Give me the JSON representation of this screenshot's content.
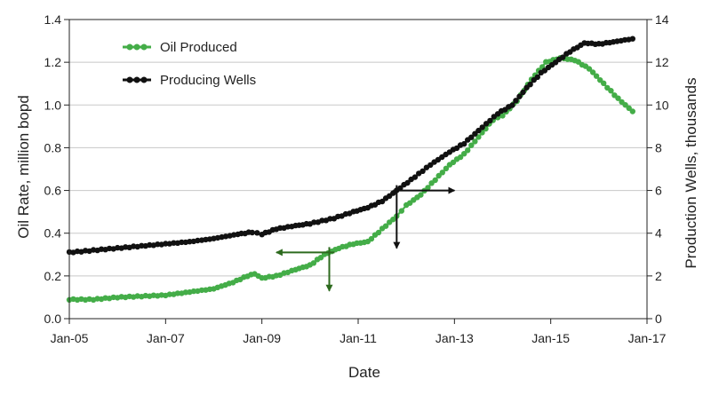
{
  "chart_data": {
    "type": "line",
    "title": "",
    "xlabel": "Date",
    "ylabel_left": "Oil Rate, million bopd",
    "ylabel_right": "Production Wells, thousands",
    "x_range": [
      2005,
      2017
    ],
    "x_ticks": [
      {
        "value": 2005,
        "label": "Jan-05"
      },
      {
        "value": 2007,
        "label": "Jan-07"
      },
      {
        "value": 2009,
        "label": "Jan-09"
      },
      {
        "value": 2011,
        "label": "Jan-11"
      },
      {
        "value": 2013,
        "label": "Jan-13"
      },
      {
        "value": 2015,
        "label": "Jan-15"
      },
      {
        "value": 2017,
        "label": "Jan-17"
      }
    ],
    "ylim_left": [
      0,
      1.4
    ],
    "y_ticks_left": [
      {
        "value": 0.0,
        "label": "0.0"
      },
      {
        "value": 0.2,
        "label": "0.2"
      },
      {
        "value": 0.4,
        "label": "0.4"
      },
      {
        "value": 0.6,
        "label": "0.6"
      },
      {
        "value": 0.8,
        "label": "0.8"
      },
      {
        "value": 1.0,
        "label": "1.0"
      },
      {
        "value": 1.2,
        "label": "1.2"
      },
      {
        "value": 1.4,
        "label": "1.4"
      }
    ],
    "ylim_right": [
      0,
      14
    ],
    "y_ticks_right": [
      {
        "value": 0,
        "label": "0"
      },
      {
        "value": 2,
        "label": "2"
      },
      {
        "value": 4,
        "label": "4"
      },
      {
        "value": 6,
        "label": "6"
      },
      {
        "value": 8,
        "label": "8"
      },
      {
        "value": 10,
        "label": "10"
      },
      {
        "value": 12,
        "label": "12"
      },
      {
        "value": 14,
        "label": "14"
      }
    ],
    "grid": "horizontal",
    "legend_position": "top-left",
    "series": [
      {
        "name": "Oil Produced",
        "axis": "left",
        "color": "#44ad48",
        "points": [
          [
            2005.0,
            0.09
          ],
          [
            2005.5,
            0.09
          ],
          [
            2006.0,
            0.1
          ],
          [
            2006.5,
            0.105
          ],
          [
            2007.0,
            0.11
          ],
          [
            2007.5,
            0.125
          ],
          [
            2008.0,
            0.14
          ],
          [
            2008.4,
            0.17
          ],
          [
            2008.7,
            0.2
          ],
          [
            2008.85,
            0.21
          ],
          [
            2009.0,
            0.19
          ],
          [
            2009.3,
            0.2
          ],
          [
            2009.7,
            0.23
          ],
          [
            2010.0,
            0.25
          ],
          [
            2010.3,
            0.3
          ],
          [
            2010.6,
            0.33
          ],
          [
            2010.9,
            0.35
          ],
          [
            2011.2,
            0.36
          ],
          [
            2011.5,
            0.42
          ],
          [
            2011.8,
            0.48
          ],
          [
            2012.0,
            0.53
          ],
          [
            2012.3,
            0.58
          ],
          [
            2012.6,
            0.65
          ],
          [
            2012.9,
            0.72
          ],
          [
            2013.2,
            0.77
          ],
          [
            2013.5,
            0.85
          ],
          [
            2013.8,
            0.93
          ],
          [
            2014.0,
            0.95
          ],
          [
            2014.3,
            1.02
          ],
          [
            2014.6,
            1.12
          ],
          [
            2014.9,
            1.2
          ],
          [
            2015.2,
            1.22
          ],
          [
            2015.5,
            1.21
          ],
          [
            2015.8,
            1.17
          ],
          [
            2016.1,
            1.1
          ],
          [
            2016.4,
            1.03
          ],
          [
            2016.7,
            0.97
          ]
        ]
      },
      {
        "name": "Producing Wells",
        "axis": "right",
        "color": "#111111",
        "points": [
          [
            2005.0,
            3.1
          ],
          [
            2005.5,
            3.2
          ],
          [
            2006.0,
            3.3
          ],
          [
            2006.5,
            3.4
          ],
          [
            2007.0,
            3.5
          ],
          [
            2007.5,
            3.6
          ],
          [
            2008.0,
            3.75
          ],
          [
            2008.5,
            3.95
          ],
          [
            2008.8,
            4.05
          ],
          [
            2009.0,
            3.95
          ],
          [
            2009.3,
            4.2
          ],
          [
            2009.7,
            4.35
          ],
          [
            2010.0,
            4.45
          ],
          [
            2010.5,
            4.7
          ],
          [
            2010.9,
            5.0
          ],
          [
            2011.2,
            5.2
          ],
          [
            2011.5,
            5.5
          ],
          [
            2011.8,
            6.0
          ],
          [
            2012.1,
            6.5
          ],
          [
            2012.5,
            7.2
          ],
          [
            2012.9,
            7.8
          ],
          [
            2013.2,
            8.2
          ],
          [
            2013.5,
            8.8
          ],
          [
            2013.9,
            9.6
          ],
          [
            2014.2,
            10.0
          ],
          [
            2014.5,
            10.8
          ],
          [
            2014.8,
            11.5
          ],
          [
            2015.1,
            12.0
          ],
          [
            2015.4,
            12.5
          ],
          [
            2015.7,
            12.9
          ],
          [
            2016.0,
            12.85
          ],
          [
            2016.3,
            12.95
          ],
          [
            2016.7,
            13.1
          ]
        ]
      }
    ],
    "annotations": [
      {
        "type": "arrow-cross",
        "color": "#2d6a1e",
        "axis": "left",
        "x": 2010.4,
        "y": 0.31,
        "arrow_left_to": 2009.3,
        "arrow_down_to": 0.13
      },
      {
        "type": "arrow-cross",
        "color": "#111111",
        "axis": "right",
        "x": 2011.8,
        "y": 6.0,
        "arrow_right_to": 2013.0,
        "arrow_down_to": 3.3
      }
    ]
  }
}
